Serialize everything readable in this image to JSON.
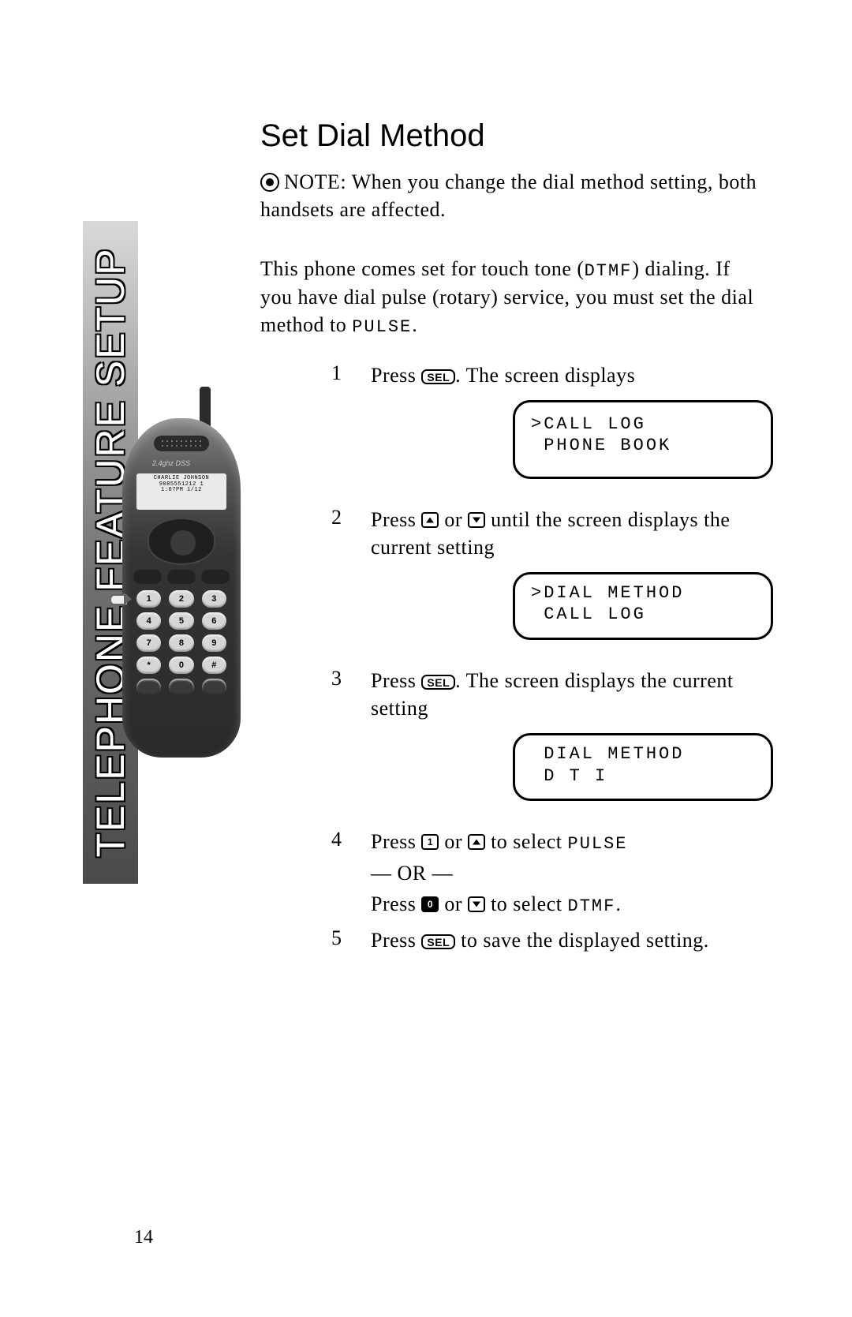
{
  "sideTab": "TELEPHONE FEATURE SETUP",
  "title": "Set Dial Method",
  "note": {
    "label": "NOTE:",
    "text": "When you change the dial method setting, both handsets are affected."
  },
  "intro": {
    "pre": "This phone comes set for touch tone (",
    "dtmf": "DTMF",
    "mid": ") dialing. If you have dial pulse (rotary) service, you must set the dial method to ",
    "pulse": "PULSE",
    "post": "."
  },
  "buttons": {
    "sel": "SEL"
  },
  "steps": {
    "s1": {
      "num": "1",
      "textA": "Press ",
      "textB": ". The screen displays"
    },
    "s2": {
      "num": "2",
      "textA": "Press ",
      "or": " or ",
      "textB": " until the screen displays the current setting"
    },
    "s3": {
      "num": "3",
      "textA": "Press ",
      "textB": ". The screen displays the current setting"
    },
    "s4": {
      "num": "4",
      "l1a": "Press ",
      "l1or": " or ",
      "l1b": " to select ",
      "l1pulse": "PULSE",
      "orline": "— OR —",
      "l2a": "Press ",
      "l2or": " or ",
      "l2b": " to select ",
      "l2dtmf": "DTMF",
      "l2end": "."
    },
    "s5": {
      "num": "5",
      "textA": "Press ",
      "textB": " to save the displayed setting."
    }
  },
  "lcd1": ">CALL LOG\n PHONE BOOK",
  "lcd2": ">DIAL METHOD\n CALL LOG",
  "lcd3": " DIAL METHOD\n D T I",
  "phone": {
    "brand": "2.4ghz DSS",
    "screenLine1": "CHARLIE JOHNSON",
    "screenLine2": "9085551212      1",
    "screenLine3": "1:07PM 1/12"
  },
  "pageNumber": "14"
}
